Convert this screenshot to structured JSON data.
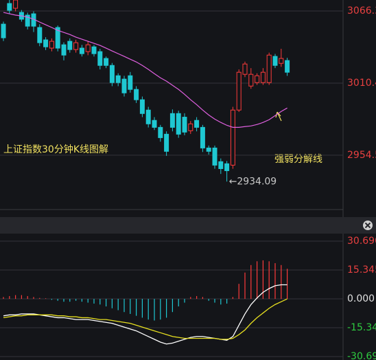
{
  "chart_data": [
    {
      "type": "candlestick",
      "title": "上证指数30分钟K线图解",
      "open": [
        3056.1,
        3072.1,
        3068.4,
        3065.2,
        3063.1,
        3064.1,
        3053.5,
        3043.9,
        3037.5,
        3053.5,
        3040.1,
        3042.8,
        3036.4,
        3037.5,
        3034.8,
        3038.5,
        3034.8,
        3029.5,
        3024.1,
        3016.1,
        3013.5,
        3016.1,
        3005.5,
        2997.5,
        2989.5,
        2981.5,
        2976.1,
        2970.8,
        2986.8,
        2986.8,
        2984,
        2973.5,
        2981.5,
        2976.1,
        2960.1,
        2960.1,
        2949.5,
        2947.9,
        2946.8,
        2989.5,
        3017.2,
        3008.1,
        3010.8,
        3010.8,
        3010.8,
        3031.1,
        3025.7,
        3027.9
      ],
      "close": [
        3045.5,
        3066.8,
        3074.8,
        3059.9,
        3054.5,
        3054.5,
        3041.7,
        3038.5,
        3042.8,
        3037.5,
        3032.1,
        3036.4,
        3041.7,
        3033.2,
        3040.1,
        3033.2,
        3024.1,
        3024.1,
        3010.8,
        3010.8,
        3002.8,
        3005.5,
        2997.5,
        2986.8,
        2978.8,
        2976.1,
        2968.1,
        2957.5,
        2976.1,
        2970.8,
        2972.4,
        2978.8,
        2976.1,
        2960.1,
        2957.5,
        2946.8,
        2944.1,
        2942.5,
        2989.5,
        3018.8,
        3025.2,
        3017.2,
        3016.1,
        3018.8,
        3032.1,
        3024.1,
        3029.5,
        3018.8
      ],
      "high": [
        3058,
        3074.8,
        3074.8,
        3067,
        3065,
        3066,
        3056,
        3046,
        3045,
        3055,
        3042,
        3045,
        3044,
        3040,
        3043,
        3040,
        3037,
        3031,
        3026,
        3018,
        3016,
        3019,
        3008,
        3000,
        2992,
        2984,
        2978,
        2973,
        2990,
        2989,
        2987,
        2981,
        2984,
        2978,
        2962,
        2962,
        2952,
        2950,
        2992,
        3021,
        3027,
        3022,
        3018,
        3022,
        3034,
        3033,
        3037,
        3030
      ],
      "low": [
        3043,
        3064,
        3066,
        3058,
        3052,
        3050,
        3039,
        3036,
        3035,
        3035,
        3028,
        3034,
        3034,
        3031,
        3032,
        3031,
        3021,
        3022,
        3008,
        3008,
        3000,
        3003,
        2995,
        2984,
        2976,
        2974,
        2965,
        2954,
        2973,
        2968,
        2970,
        2971,
        2973,
        2957,
        2955,
        2944,
        2940,
        2934.09,
        2944,
        2988,
        3015,
        3006,
        3009,
        3009,
        3009,
        3022,
        3023,
        3016
      ],
      "up_color": "#ff3b3b",
      "down_color": "#1fc8d2",
      "series": [
        {
          "name": "强弱分解线",
          "color": "#e060e0",
          "values": [
            3065.2,
            3064.1,
            3063.1,
            3062.5,
            3061.5,
            3059.9,
            3057.7,
            3055.6,
            3053.5,
            3051.3,
            3049.7,
            3048.1,
            3046.0,
            3044.4,
            3042.8,
            3041.2,
            3039.6,
            3037.5,
            3035.3,
            3033.2,
            3031.1,
            3028.9,
            3026.8,
            3024.1,
            3021.0,
            3017.7,
            3014.5,
            3011.9,
            3008.7,
            3005.5,
            3001.7,
            2997.5,
            2993.7,
            2989.5,
            2985.7,
            2982.5,
            2979.9,
            2977.7,
            2976.1,
            2976.1,
            2976.7,
            2977.2,
            2978.3,
            2979.9,
            2982.0,
            2985.2,
            2988.4,
            2991.1
          ]
        }
      ],
      "annotations": [
        "←2934.09"
      ],
      "ylim": [
        2912.4,
        3074.8
      ],
      "yticks": [
        3066.3,
        3010.4,
        2954.5
      ],
      "grid": true
    },
    {
      "type": "macd",
      "values": [
        1,
        1.5,
        2,
        2,
        1.5,
        1,
        0.5,
        0.3,
        -0.5,
        -1,
        -1.5,
        -1.5,
        -1,
        -1.5,
        -2,
        -2.5,
        -3,
        -4,
        -5,
        -6,
        -7,
        -8,
        -9,
        -10,
        -11,
        -11.5,
        -11,
        -10,
        -7,
        -4,
        -2,
        1,
        1.5,
        1,
        -1,
        -2,
        -3,
        -2.5,
        1,
        8,
        14,
        18,
        20,
        20.5,
        20,
        19,
        18,
        16
      ],
      "up_color": "#ff3b3b",
      "down_color": "#1fc8d2",
      "series": [
        {
          "color": "#ffffff",
          "values": [
            -9,
            -8.5,
            -8.5,
            -8,
            -8,
            -8,
            -8.5,
            -9,
            -9.5,
            -10,
            -10,
            -10.5,
            -11,
            -11,
            -11,
            -11.5,
            -12,
            -12.5,
            -13,
            -14,
            -15,
            -16,
            -17,
            -18.5,
            -20,
            -21.5,
            -23,
            -24,
            -23.5,
            -22.5,
            -21.5,
            -20.5,
            -20,
            -20,
            -20.5,
            -21,
            -21.5,
            -22,
            -20,
            -14,
            -8,
            -3,
            0.5,
            3.5,
            5.5,
            7,
            7.5,
            7.5
          ]
        },
        {
          "color": "#e8e020",
          "values": [
            -10,
            -9.5,
            -9,
            -9,
            -8.5,
            -8.5,
            -8.5,
            -8.5,
            -8.5,
            -9,
            -9,
            -9.5,
            -9.5,
            -10,
            -10,
            -10.5,
            -11,
            -11,
            -11.5,
            -12,
            -12.5,
            -13,
            -14,
            -15,
            -16,
            -17,
            -18,
            -19,
            -20,
            -20.5,
            -21,
            -21,
            -21,
            -21,
            -21,
            -21,
            -21.5,
            -21.5,
            -21,
            -19,
            -16.5,
            -13,
            -10,
            -7.5,
            -5,
            -3,
            -1.5,
            0
          ]
        }
      ],
      "ylim": [
        -32.5,
        32.9
      ],
      "yticks": [
        {
          "value": 30.69,
          "label": "30.690"
        },
        {
          "value": 15.345,
          "label": "15.345"
        },
        {
          "value": 0,
          "label": "0.000"
        },
        {
          "value": -15.345,
          "label": "-15.345"
        },
        {
          "value": -30.69,
          "label": "-30.690"
        }
      ],
      "grid": true
    }
  ]
}
